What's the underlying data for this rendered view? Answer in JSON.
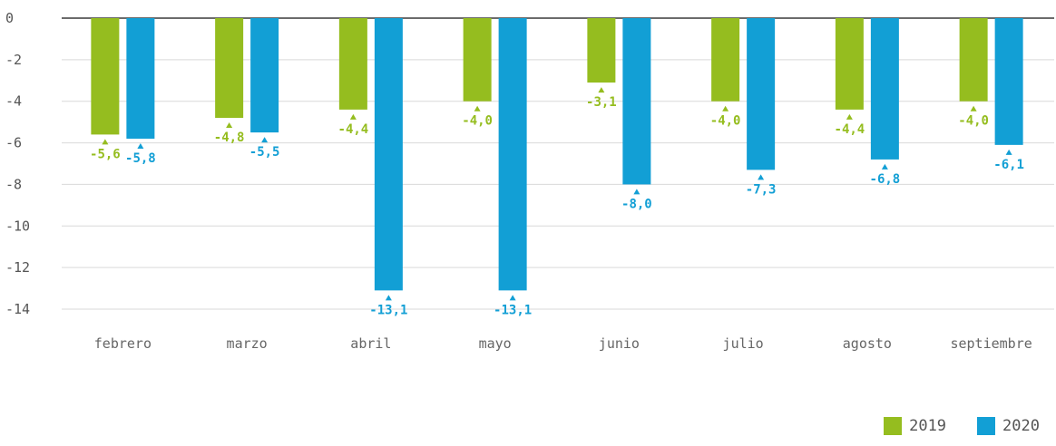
{
  "chart_data": {
    "type": "bar",
    "categories": [
      "febrero",
      "marzo",
      "abril",
      "mayo",
      "junio",
      "julio",
      "agosto",
      "septiembre"
    ],
    "series": [
      {
        "name": "2019",
        "color": "#95bd1f",
        "values": [
          -5.6,
          -4.8,
          -4.4,
          -4.0,
          -3.1,
          -4.0,
          -4.4,
          -4.0
        ],
        "labels": [
          "-5,6",
          "-4,8",
          "-4,4",
          "-4,0",
          "-3,1",
          "-4,0",
          "-4,4",
          "-4,0"
        ]
      },
      {
        "name": "2020",
        "color": "#129fd5",
        "values": [
          -5.8,
          -5.5,
          -13.1,
          -13.1,
          -8.0,
          -7.3,
          -6.8,
          -6.1
        ],
        "labels": [
          "-5,8",
          "-5,5",
          "-13,1",
          "-13,1",
          "-8,0",
          "-7,3",
          "-6,8",
          "-6,1"
        ]
      }
    ],
    "yticks": [
      0,
      -2,
      -4,
      -6,
      -8,
      -10,
      -12,
      -14
    ],
    "ytick_labels": [
      "0",
      "-2",
      "-4",
      "-6",
      "-8",
      "-10",
      "-12",
      "-14"
    ],
    "ylim": [
      -14,
      0
    ],
    "grid": true,
    "legend_position": "bottom-right",
    "title": "",
    "xlabel": "",
    "ylabel": ""
  },
  "legend": {
    "items": [
      {
        "label": "2019",
        "color": "#95bd1f"
      },
      {
        "label": "2020",
        "color": "#129fd5"
      }
    ]
  }
}
